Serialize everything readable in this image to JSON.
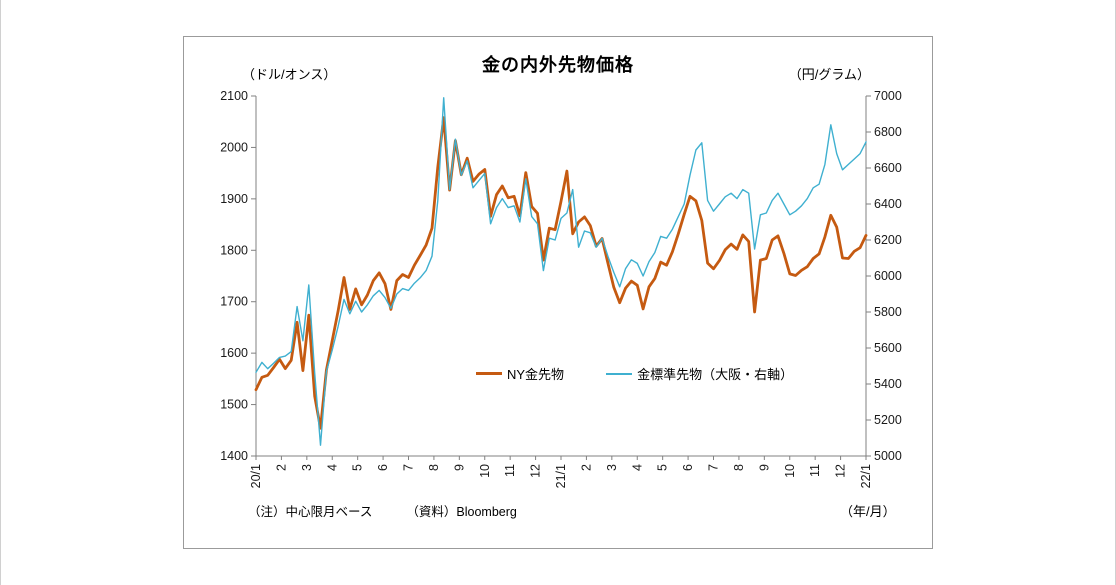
{
  "title": "金の内外先物価格",
  "axis_units": {
    "left": "（ドル/オンス）",
    "right": "（円/グラム）",
    "x": "（年/月）"
  },
  "footnotes": {
    "note": "（注）中心限月ベース",
    "source": "（資料）Bloomberg"
  },
  "chart_data": {
    "type": "line",
    "title": "金の内外先物価格",
    "x_tick_labels": [
      "20/1",
      "2",
      "3",
      "4",
      "5",
      "6",
      "7",
      "8",
      "9",
      "10",
      "11",
      "12",
      "21/1",
      "2",
      "3",
      "4",
      "5",
      "6",
      "7",
      "8",
      "9",
      "10",
      "11",
      "12",
      "22/1"
    ],
    "x_axis_label": "（年/月）",
    "left_axis": {
      "label": "（ドル/オンス）",
      "min": 1400,
      "max": 2100,
      "step": 100,
      "ticks": [
        1400,
        1500,
        1600,
        1700,
        1800,
        1900,
        2000,
        2100
      ]
    },
    "right_axis": {
      "label": "（円/グラム）",
      "min": 5000,
      "max": 7000,
      "step": 200,
      "ticks": [
        5000,
        5200,
        5400,
        5600,
        5800,
        6000,
        6200,
        6400,
        6600,
        6800,
        7000
      ]
    },
    "grid": false,
    "legend_position": "inside-lower-center",
    "series": [
      {
        "name": "NY金先物",
        "data_name": "ny-gold-line",
        "axis": "left",
        "unit": "USD/oz",
        "color": "#C55A11",
        "width": 2.8,
        "sampling": "weekly, Jan 2020 - Jan 2022",
        "values": [
          1529,
          1553,
          1557,
          1572,
          1588,
          1570,
          1586,
          1660,
          1566,
          1674,
          1516,
          1454,
          1567,
          1625,
          1682,
          1747,
          1685,
          1725,
          1694,
          1713,
          1741,
          1756,
          1735,
          1685,
          1741,
          1753,
          1747,
          1771,
          1790,
          1810,
          1843,
          1962,
          2058,
          1917,
          2013,
          1947,
          1979,
          1934,
          1948,
          1957,
          1866,
          1908,
          1925,
          1902,
          1905,
          1867,
          1951,
          1885,
          1872,
          1781,
          1843,
          1840,
          1895,
          1954,
          1832,
          1855,
          1865,
          1848,
          1808,
          1823,
          1775,
          1728,
          1698,
          1726,
          1740,
          1732,
          1686,
          1729,
          1745,
          1777,
          1771,
          1797,
          1832,
          1870,
          1905,
          1896,
          1858,
          1775,
          1764,
          1780,
          1801,
          1812,
          1802,
          1830,
          1817,
          1680,
          1781,
          1784,
          1820,
          1828,
          1794,
          1754,
          1751,
          1761,
          1768,
          1784,
          1793,
          1826,
          1868,
          1845,
          1785,
          1784,
          1798,
          1805,
          1829
        ]
      },
      {
        "name": "金標準先物（大阪・右軸）",
        "data_name": "osaka-gold-line",
        "axis": "right",
        "unit": "JPY/g",
        "color": "#3FB0D0",
        "width": 1.4,
        "sampling": "weekly, Jan 2020 - Jan 2022",
        "values": [
          5465,
          5520,
          5485,
          5515,
          5548,
          5555,
          5580,
          5830,
          5640,
          5950,
          5460,
          5060,
          5470,
          5590,
          5720,
          5870,
          5790,
          5860,
          5800,
          5840,
          5890,
          5920,
          5880,
          5820,
          5900,
          5930,
          5920,
          5960,
          5990,
          6030,
          6110,
          6420,
          6990,
          6480,
          6760,
          6560,
          6640,
          6490,
          6530,
          6570,
          6290,
          6380,
          6430,
          6380,
          6390,
          6300,
          6540,
          6330,
          6290,
          6030,
          6210,
          6200,
          6320,
          6350,
          6480,
          6160,
          6250,
          6240,
          6160,
          6210,
          6110,
          6020,
          5940,
          6040,
          6090,
          6070,
          6000,
          6080,
          6130,
          6220,
          6210,
          6260,
          6330,
          6400,
          6560,
          6700,
          6740,
          6420,
          6360,
          6400,
          6440,
          6460,
          6430,
          6480,
          6460,
          6150,
          6340,
          6350,
          6420,
          6460,
          6400,
          6340,
          6360,
          6390,
          6430,
          6490,
          6510,
          6620,
          6840,
          6680,
          6590,
          6620,
          6650,
          6680,
          6745
        ]
      }
    ]
  }
}
